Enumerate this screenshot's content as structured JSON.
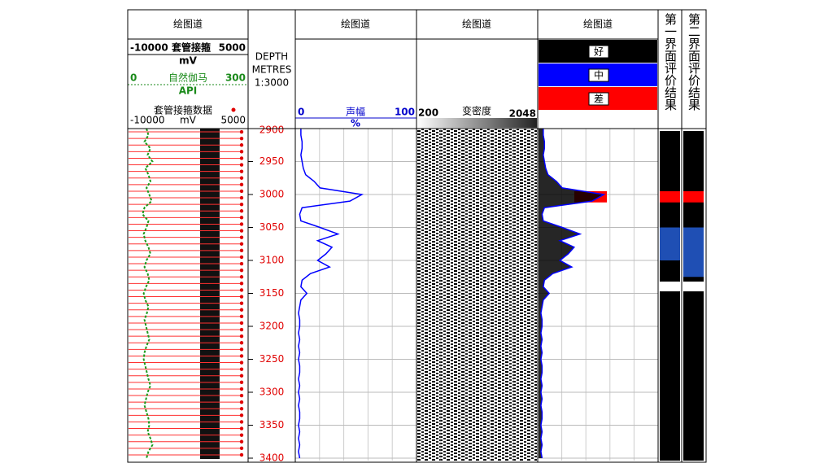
{
  "depth_range": [
    2900,
    3400
  ],
  "depth_ticks": [
    2900,
    2950,
    3000,
    3050,
    3100,
    3150,
    3200,
    3250,
    3300,
    3350,
    3400
  ],
  "depth_header": [
    "DEPTH",
    "METRES",
    "1:3000"
  ],
  "track1": {
    "title": "绘图道",
    "ccl_scale": {
      "left": -10000,
      "name": "套管接箍",
      "right": 5000,
      "unit": "mV"
    },
    "gr_scale": {
      "left": 0,
      "name": "自然伽马",
      "right": 300,
      "unit": "API"
    },
    "legend": {
      "name": "套管接箍数据",
      "left": -10000,
      "unit": "mV",
      "right": 5000
    }
  },
  "track2": {
    "title": "绘图道",
    "left": 0,
    "name": "声幅",
    "right": 100,
    "unit": "%"
  },
  "track3": {
    "title": "绘图道",
    "left": 200,
    "name": "变密度",
    "right": 2048
  },
  "track4": {
    "title": "绘图道",
    "ratings": [
      {
        "label": "好",
        "color": "#000000"
      },
      {
        "label": "中",
        "color": "#0000ff"
      },
      {
        "label": "差",
        "color": "#ff0000"
      }
    ]
  },
  "track5": {
    "title": "第一界面评价结果",
    "zones": [
      {
        "top": 2995,
        "bottom": 3012,
        "color": "#ff0000"
      },
      {
        "top": 3050,
        "bottom": 3100,
        "color": "#1f4fb4"
      }
    ]
  },
  "track6": {
    "title": "第二界面评价结果",
    "zones": [
      {
        "top": 2995,
        "bottom": 3012,
        "color": "#ff0000"
      },
      {
        "top": 3050,
        "bottom": 3125,
        "color": "#1f4fb4"
      }
    ]
  },
  "log": {
    "depths": [
      2900,
      2910,
      2920,
      2930,
      2940,
      2950,
      2960,
      2970,
      2980,
      2990,
      3000,
      3010,
      3020,
      3030,
      3040,
      3050,
      3060,
      3070,
      3080,
      3090,
      3100,
      3110,
      3120,
      3130,
      3140,
      3150,
      3160,
      3170,
      3180,
      3190,
      3200,
      3210,
      3220,
      3230,
      3240,
      3250,
      3260,
      3270,
      3280,
      3290,
      3300,
      3310,
      3320,
      3330,
      3340,
      3350,
      3360,
      3370,
      3380,
      3390,
      3400
    ],
    "gamma": [
      45,
      50,
      40,
      55,
      48,
      60,
      42,
      50,
      55,
      45,
      52,
      58,
      40,
      35,
      50,
      45,
      38,
      42,
      50,
      55,
      45,
      40,
      48,
      52,
      44,
      38,
      42,
      50,
      46,
      40,
      44,
      48,
      52,
      45,
      40,
      38,
      42,
      46,
      50,
      55,
      48,
      44,
      40,
      45,
      50,
      52,
      48,
      55,
      60,
      50,
      45
    ],
    "amplitude": [
      4,
      4,
      5,
      5,
      4,
      5,
      6,
      8,
      15,
      20,
      55,
      45,
      5,
      3,
      4,
      20,
      35,
      18,
      30,
      25,
      18,
      28,
      12,
      5,
      4,
      9,
      4,
      3,
      2,
      3,
      3,
      2,
      3,
      2,
      3,
      2,
      3,
      3,
      2,
      3,
      2,
      3,
      2,
      3,
      3,
      2,
      3,
      2,
      3,
      2,
      3
    ]
  },
  "collars": [
    2905,
    2915,
    2925,
    2935,
    2945,
    2955,
    2965,
    2975,
    2985,
    2995,
    3005,
    3015,
    3025,
    3035,
    3045,
    3055,
    3065,
    3075,
    3085,
    3095,
    3105,
    3115,
    3125,
    3135,
    3145,
    3155,
    3165,
    3175,
    3185,
    3195,
    3205,
    3215,
    3225,
    3235,
    3245,
    3255,
    3265,
    3275,
    3285,
    3295,
    3305,
    3315,
    3325,
    3335,
    3345,
    3355,
    3365,
    3375,
    3385,
    3395
  ]
}
